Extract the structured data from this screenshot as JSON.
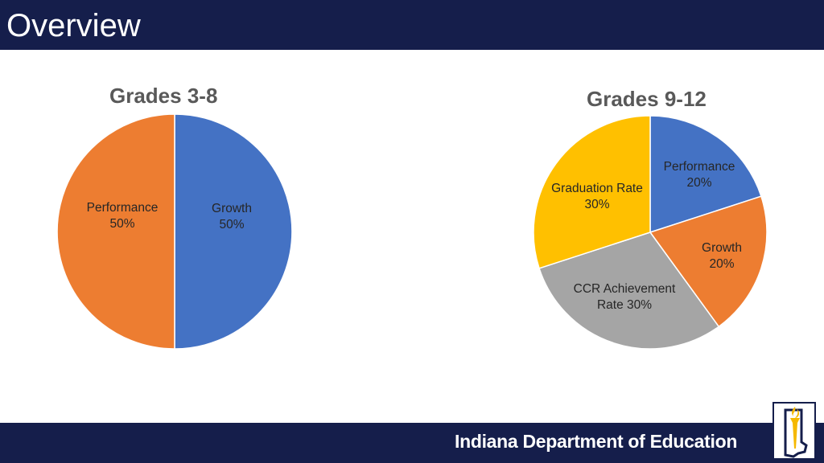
{
  "slide": {
    "title": "Overview"
  },
  "footer": {
    "organization": "Indiana Department of Education",
    "logo": "torch-state-outline-icon"
  },
  "colors": {
    "header_bg": "#151e4b",
    "blue": "#4472c4",
    "orange": "#ed7d31",
    "gray": "#a5a5a5",
    "yellow": "#ffc000",
    "logo_gold": "#f5b800"
  },
  "chart_data": [
    {
      "type": "pie",
      "title": "Grades 3-8",
      "slices": [
        {
          "label_lines": [
            "Growth",
            "50%"
          ],
          "value": 50,
          "color": "#4472c4"
        },
        {
          "label_lines": [
            "Performance",
            "50%"
          ],
          "value": 50,
          "color": "#ed7d31"
        }
      ],
      "start": "top",
      "direction": "clockwise"
    },
    {
      "type": "pie",
      "title": "Grades 9-12",
      "slices": [
        {
          "label_lines": [
            "Performance",
            "20%"
          ],
          "value": 20,
          "color": "#4472c4"
        },
        {
          "label_lines": [
            "Growth",
            "20%"
          ],
          "value": 20,
          "color": "#ed7d31"
        },
        {
          "label_lines": [
            "CCR Achievement",
            "Rate 30%"
          ],
          "value": 30,
          "color": "#a5a5a5"
        },
        {
          "label_lines": [
            "Graduation Rate",
            "30%"
          ],
          "value": 30,
          "color": "#ffc000"
        }
      ],
      "start": "top",
      "direction": "clockwise"
    }
  ]
}
